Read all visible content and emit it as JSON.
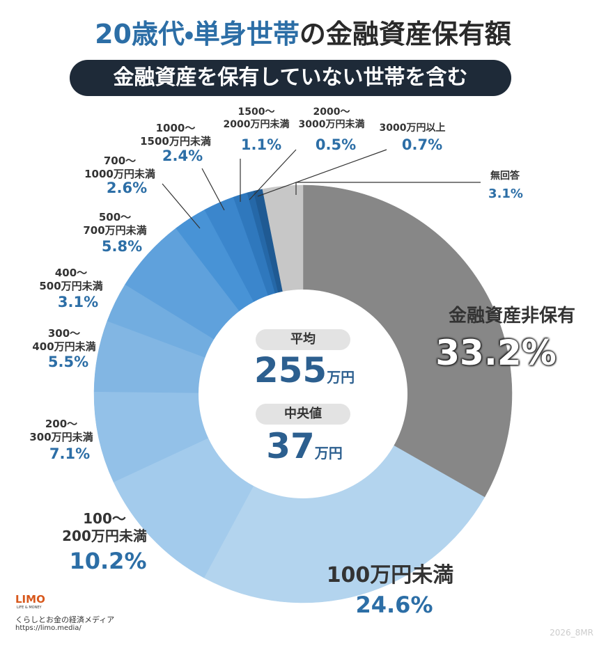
{
  "header": {
    "title_highlight": "20歳代・単身世帯",
    "title_rest": "の金融資産保有額",
    "subtitle": "金融資産を保有していない世帯を含む"
  },
  "chart_data": {
    "type": "donut",
    "categories": [
      "金融資産非保有",
      "100万円未満",
      "100〜\n200万円未満",
      "200〜\n300万円未満",
      "300〜\n400万円未満",
      "400〜\n500万円未満",
      "500〜\n700万円未満",
      "700〜\n1000万円未満",
      "1000〜\n1500万円未満",
      "1500〜\n2000万円未満",
      "2000〜\n3000万円未満",
      "3000万円以上",
      "無回答"
    ],
    "values": [
      33.2,
      24.6,
      10.2,
      7.1,
      5.5,
      3.1,
      5.8,
      2.6,
      2.4,
      1.1,
      0.5,
      0.7,
      3.1
    ],
    "value_labels": [
      "33.2%",
      "24.6%",
      "10.2%",
      "7.1%",
      "5.5%",
      "3.1%",
      "5.8%",
      "2.6%",
      "2.4%",
      "1.1%",
      "0.5%",
      "0.7%",
      "3.1%"
    ],
    "colors": [
      "#878787",
      "#b3d4ee",
      "#a3cbec",
      "#93c1e8",
      "#82b6e3",
      "#72ade0",
      "#5fa1dc",
      "#4893d6",
      "#3b86cc",
      "#2f78bd",
      "#2568a8",
      "#1f5a93",
      "#c7c7c7"
    ]
  },
  "center": {
    "mean": {
      "label": "平均",
      "value": 255,
      "unit": "万円"
    },
    "median": {
      "label": "中央値",
      "value": 37,
      "unit": "万円"
    }
  },
  "footer": {
    "logo": "LIMO",
    "logo_sub": "LIFE & MONEY",
    "tagline": "くらしとお金の経済メディア",
    "url": "https://limo.media/",
    "code": "2026_8MR"
  }
}
